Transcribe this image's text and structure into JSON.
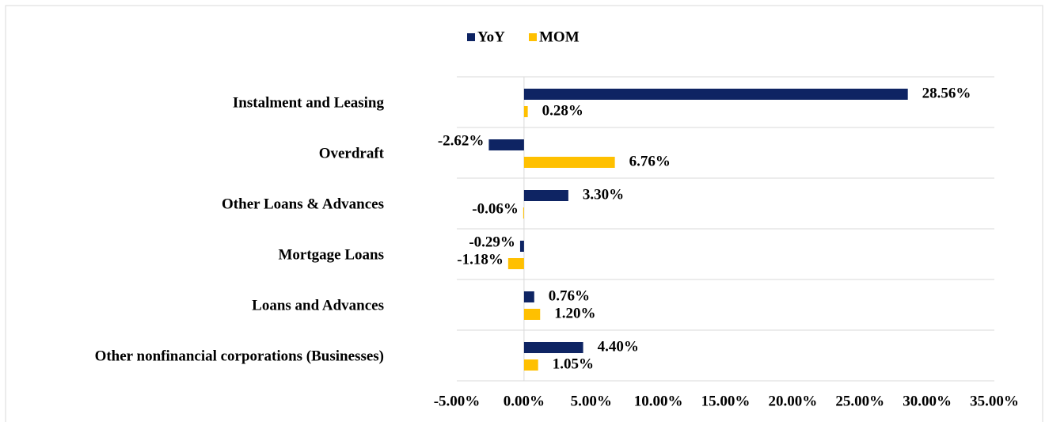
{
  "chart_data": {
    "type": "hbar",
    "categories": [
      "Instalment and Leasing",
      "Overdraft",
      "Other Loans & Advances",
      "Mortgage Loans",
      "Loans and Advances",
      "Other nonfinancial corporations (Businesses)"
    ],
    "series": [
      {
        "name": "YoY",
        "color": "#0e2463",
        "values": [
          28.56,
          -2.62,
          3.3,
          -0.29,
          0.76,
          4.4
        ],
        "value_labels": [
          "28.56%",
          "-2.62%",
          "3.30%",
          "-0.29%",
          "0.76%",
          "4.40%"
        ]
      },
      {
        "name": "MOM",
        "color": "#ffc000",
        "values": [
          0.28,
          6.76,
          -0.06,
          -1.18,
          1.2,
          1.05
        ],
        "value_labels": [
          "0.28%",
          "6.76%",
          "-0.06%",
          "-1.18%",
          "1.20%",
          "1.05%"
        ]
      }
    ],
    "xlim": [
      -5,
      35
    ],
    "xticks": [
      {
        "value": -5,
        "label": "-5.00%"
      },
      {
        "value": 0,
        "label": "0.00%"
      },
      {
        "value": 5,
        "label": "5.00%"
      },
      {
        "value": 10,
        "label": "10.00%"
      },
      {
        "value": 15,
        "label": "15.00%"
      },
      {
        "value": 20,
        "label": "20.00%"
      },
      {
        "value": 25,
        "label": "25.00%"
      },
      {
        "value": 30,
        "label": "30.00%"
      },
      {
        "value": 35,
        "label": "35.00%"
      }
    ],
    "grid": true,
    "legend": "top"
  }
}
